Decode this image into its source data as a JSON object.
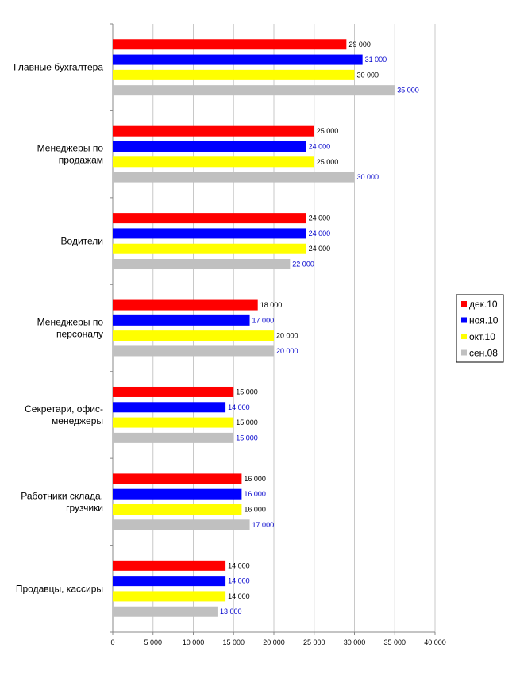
{
  "chart_data": {
    "type": "bar",
    "orientation": "horizontal",
    "categories": [
      [
        "Главные бухгалтера"
      ],
      [
        "Менеджеры по",
        "продажам"
      ],
      [
        "Водители"
      ],
      [
        "Менеджеры по",
        "персоналу"
      ],
      [
        "Секретари, офис-",
        "менеджеры"
      ],
      [
        "Работники склада,",
        "грузчики"
      ],
      [
        "Продавцы, кассиры"
      ]
    ],
    "series": [
      {
        "name": "дек.10",
        "color": "#ff0000",
        "label_color": "#000000",
        "values": [
          29000,
          25000,
          24000,
          18000,
          15000,
          16000,
          14000
        ],
        "labels": [
          "29 000",
          "25 000",
          "24 000",
          "18 000",
          "15 000",
          "16 000",
          "14 000"
        ]
      },
      {
        "name": "ноя.10",
        "color": "#0000ff",
        "label_color": "#0000cc",
        "values": [
          31000,
          24000,
          24000,
          17000,
          14000,
          16000,
          14000
        ],
        "labels": [
          "31 000",
          "24 000",
          "24 000",
          "17 000",
          "14 000",
          "16 000",
          "14 000"
        ]
      },
      {
        "name": "окт.10",
        "color": "#ffff00",
        "label_color": "#000000",
        "values": [
          30000,
          25000,
          24000,
          20000,
          15000,
          16000,
          14000
        ],
        "labels": [
          "30 000",
          "25 000",
          "24 000",
          "20 000",
          "15 000",
          "16 000",
          "14 000"
        ]
      },
      {
        "name": "сен.08",
        "color": "#c0c0c0",
        "label_color": "#0000cc",
        "values": [
          35000,
          30000,
          22000,
          20000,
          15000,
          17000,
          13000
        ],
        "labels": [
          "35 000",
          "30 000",
          "22 000",
          "20 000",
          "15 000",
          "17 000",
          "13 000"
        ]
      }
    ],
    "xlim": [
      0,
      40000
    ],
    "xticks": [
      0,
      5000,
      10000,
      15000,
      20000,
      25000,
      30000,
      35000,
      40000
    ],
    "xtick_labels": [
      "0",
      "5 000",
      "10 000",
      "15 000",
      "20 000",
      "25 000",
      "30 000",
      "35 000",
      "40 000"
    ],
    "grid": true,
    "legend": "right",
    "title": "",
    "xlabel": "",
    "ylabel": ""
  }
}
